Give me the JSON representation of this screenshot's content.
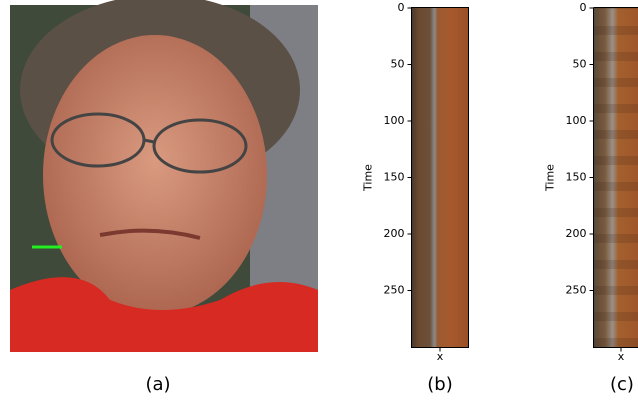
{
  "panels": [
    {
      "caption": "(a)"
    },
    {
      "caption": "(b)",
      "y_label": "Time",
      "x_label": "x",
      "ylim": [
        0,
        300
      ],
      "yticks": [
        0,
        50,
        100,
        150,
        200,
        250
      ]
    },
    {
      "caption": "(c)",
      "y_label": "Time",
      "x_label": "x",
      "ylim": [
        0,
        300
      ],
      "yticks": [
        0,
        50,
        100,
        150,
        200,
        250
      ]
    }
  ]
}
